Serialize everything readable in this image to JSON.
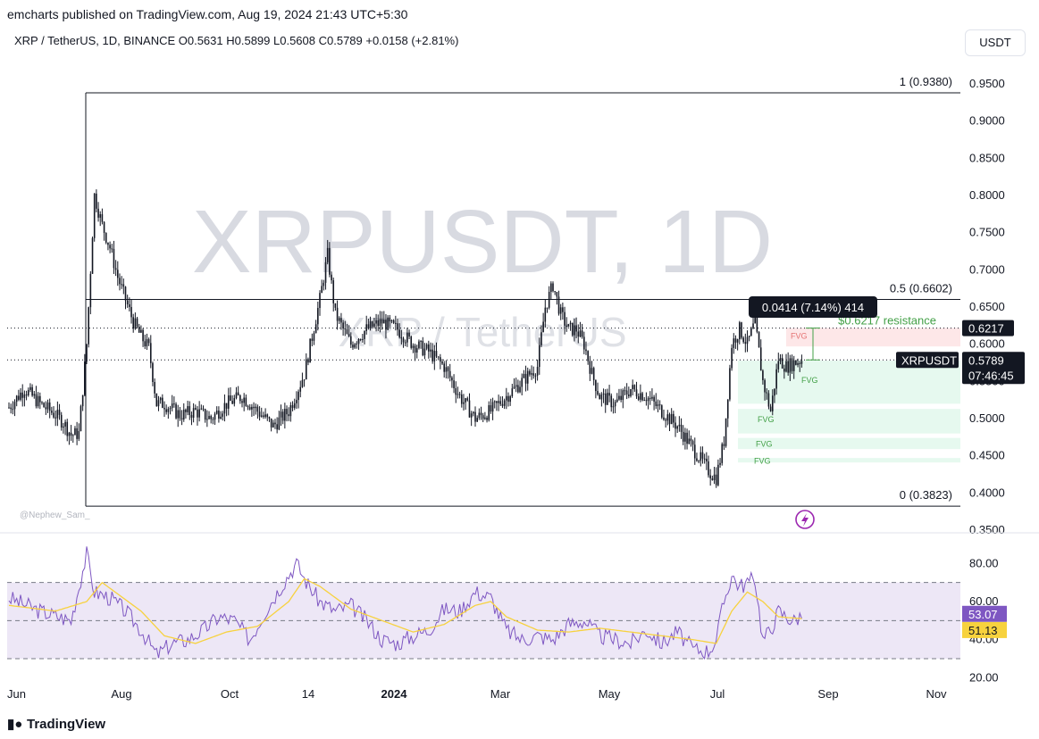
{
  "header": {
    "published": "emcharts published on TradingView.com, Aug 19, 2024 21:43 UTC+5:30",
    "symbol_line": "XRP / TetherUS, 1D, BINANCE  O0.5631  H0.5899  L0.5608  C0.5789  +0.0158 (+2.81%)",
    "currency": "USDT"
  },
  "watermark": {
    "main": "XRPUSDT, 1D",
    "sub": "XRP / TetherUS"
  },
  "credit": "@Nephew_Sam_",
  "footer": {
    "brand": "TradingView"
  },
  "colors": {
    "up": "#131722",
    "rsi_line": "#7e57c2",
    "rsi_ma": "#f7d23e",
    "rsi_band": "#ede7f6",
    "fvg_green": "#e6f9ef",
    "fvg_red": "#fde7e8",
    "label_dark": "#131722",
    "rsi_badge": "#7e57c2",
    "ma_badge": "#f7d23e"
  },
  "chart_data": [
    {
      "type": "candlestick",
      "title": "XRPUSDT, 1D",
      "ylim": [
        0.35,
        0.975
      ],
      "y_ticks": [
        "0.9500",
        "0.9000",
        "0.8500",
        "0.8000",
        "0.7500",
        "0.7000",
        "0.6500",
        "0.6000",
        "0.5500",
        "0.5000",
        "0.4500",
        "0.4000",
        "0.3500"
      ],
      "x_ticks": [
        "Jun",
        "Aug",
        "Oct",
        "14",
        "2024",
        "Mar",
        "May",
        "Jul",
        "Sep",
        "Nov"
      ],
      "last_price": "0.5789",
      "last_label": "XRPUSDT",
      "countdown": "07:46:45",
      "resistance_price": "0.6217",
      "resistance_label": "$0.6217 resistance",
      "measure_label": "0.0414 (7.14%) 414",
      "fib_levels": [
        {
          "label": "1 (0.9380)",
          "value": 0.938
        },
        {
          "label": "0.5 (0.6602)",
          "value": 0.6602
        },
        {
          "label": "0 (0.3823)",
          "value": 0.3823
        }
      ],
      "fvg_zones": [
        {
          "label": "FVG",
          "from": 0.622,
          "to": 0.597,
          "kind": "bearish"
        },
        {
          "label": "FVG",
          "from": 0.578,
          "to": 0.52,
          "kind": "bullish"
        },
        {
          "label": "FVG",
          "from": 0.513,
          "to": 0.48,
          "kind": "bullish"
        },
        {
          "label": "FVG",
          "from": 0.474,
          "to": 0.459,
          "kind": "bullish"
        },
        {
          "label": "FVG",
          "from": 0.447,
          "to": 0.441,
          "kind": "bullish"
        }
      ],
      "close_path": [
        [
          0,
          0.515
        ],
        [
          2,
          0.54
        ],
        [
          4,
          0.52
        ],
        [
          6,
          0.505
        ],
        [
          7,
          0.495
        ],
        [
          8,
          0.478
        ],
        [
          9,
          0.48
        ],
        [
          10,
          0.6
        ],
        [
          11,
          0.8
        ],
        [
          12,
          0.76
        ],
        [
          13,
          0.73
        ],
        [
          14,
          0.69
        ],
        [
          15,
          0.66
        ],
        [
          16,
          0.63
        ],
        [
          17,
          0.61
        ],
        [
          18,
          0.595
        ],
        [
          19,
          0.52
        ],
        [
          20,
          0.52
        ],
        [
          22,
          0.505
        ],
        [
          24,
          0.51
        ],
        [
          26,
          0.5
        ],
        [
          28,
          0.52
        ],
        [
          30,
          0.53
        ],
        [
          32,
          0.51
        ],
        [
          34,
          0.49
        ],
        [
          36,
          0.51
        ],
        [
          38,
          0.56
        ],
        [
          40,
          0.66
        ],
        [
          41,
          0.72
        ],
        [
          42,
          0.64
        ],
        [
          43,
          0.62
        ],
        [
          44,
          0.6
        ],
        [
          46,
          0.62
        ],
        [
          48,
          0.63
        ],
        [
          50,
          0.62
        ],
        [
          52,
          0.6
        ],
        [
          54,
          0.59
        ],
        [
          56,
          0.57
        ],
        [
          58,
          0.53
        ],
        [
          60,
          0.5
        ],
        [
          62,
          0.51
        ],
        [
          64,
          0.53
        ],
        [
          66,
          0.55
        ],
        [
          68,
          0.57
        ],
        [
          69,
          0.65
        ],
        [
          70,
          0.68
        ],
        [
          71,
          0.64
        ],
        [
          72,
          0.62
        ],
        [
          73,
          0.62
        ],
        [
          74,
          0.6
        ],
        [
          75,
          0.56
        ],
        [
          76,
          0.53
        ],
        [
          78,
          0.52
        ],
        [
          80,
          0.54
        ],
        [
          82,
          0.53
        ],
        [
          84,
          0.51
        ],
        [
          86,
          0.49
        ],
        [
          88,
          0.46
        ],
        [
          90,
          0.43
        ],
        [
          91,
          0.42
        ],
        [
          92,
          0.47
        ],
        [
          93,
          0.6
        ],
        [
          94,
          0.62
        ],
        [
          95,
          0.6
        ],
        [
          96,
          0.63
        ],
        [
          97,
          0.55
        ],
        [
          98,
          0.51
        ],
        [
          99,
          0.58
        ],
        [
          100,
          0.57
        ],
        [
          101,
          0.575
        ],
        [
          102,
          0.579
        ]
      ]
    },
    {
      "type": "line",
      "title": "RSI",
      "ylim": [
        15,
        90
      ],
      "y_ticks": [
        "80.00",
        "60.00",
        "40.00",
        "20.00"
      ],
      "bands": [
        70,
        50,
        30
      ],
      "rsi_value": "53.07",
      "ma_value": "51.13",
      "rsi_path": [
        [
          0,
          62
        ],
        [
          4,
          55
        ],
        [
          8,
          50
        ],
        [
          10,
          85
        ],
        [
          11,
          65
        ],
        [
          13,
          62
        ],
        [
          15,
          55
        ],
        [
          17,
          45
        ],
        [
          19,
          32
        ],
        [
          21,
          38
        ],
        [
          23,
          40
        ],
        [
          25,
          45
        ],
        [
          27,
          52
        ],
        [
          29,
          50
        ],
        [
          31,
          40
        ],
        [
          33,
          55
        ],
        [
          35,
          68
        ],
        [
          37,
          80
        ],
        [
          38,
          72
        ],
        [
          40,
          60
        ],
        [
          42,
          55
        ],
        [
          44,
          58
        ],
        [
          46,
          50
        ],
        [
          48,
          40
        ],
        [
          50,
          38
        ],
        [
          52,
          42
        ],
        [
          54,
          45
        ],
        [
          56,
          56
        ],
        [
          58,
          55
        ],
        [
          60,
          65
        ],
        [
          62,
          62
        ],
        [
          64,
          45
        ],
        [
          66,
          40
        ],
        [
          68,
          42
        ],
        [
          70,
          40
        ],
        [
          72,
          48
        ],
        [
          74,
          50
        ],
        [
          76,
          42
        ],
        [
          78,
          40
        ],
        [
          80,
          38
        ],
        [
          82,
          45
        ],
        [
          84,
          38
        ],
        [
          86,
          44
        ],
        [
          88,
          35
        ],
        [
          90,
          34
        ],
        [
          91,
          40
        ],
        [
          92,
          60
        ],
        [
          93,
          74
        ],
        [
          94,
          68
        ],
        [
          95,
          70
        ],
        [
          96,
          72
        ],
        [
          97,
          40
        ],
        [
          98,
          45
        ],
        [
          99,
          55
        ],
        [
          100,
          52
        ],
        [
          101,
          50
        ],
        [
          102,
          53
        ]
      ],
      "ma_path": [
        [
          0,
          58
        ],
        [
          6,
          55
        ],
        [
          10,
          60
        ],
        [
          12,
          70
        ],
        [
          14,
          64
        ],
        [
          17,
          55
        ],
        [
          20,
          42
        ],
        [
          24,
          38
        ],
        [
          28,
          44
        ],
        [
          32,
          47
        ],
        [
          36,
          60
        ],
        [
          38,
          72
        ],
        [
          40,
          68
        ],
        [
          44,
          56
        ],
        [
          48,
          50
        ],
        [
          52,
          44
        ],
        [
          56,
          48
        ],
        [
          60,
          58
        ],
        [
          62,
          60
        ],
        [
          64,
          52
        ],
        [
          68,
          45
        ],
        [
          72,
          44
        ],
        [
          76,
          46
        ],
        [
          80,
          44
        ],
        [
          84,
          42
        ],
        [
          88,
          40
        ],
        [
          91,
          38
        ],
        [
          93,
          55
        ],
        [
          95,
          65
        ],
        [
          97,
          60
        ],
        [
          99,
          52
        ],
        [
          102,
          51
        ]
      ]
    }
  ]
}
